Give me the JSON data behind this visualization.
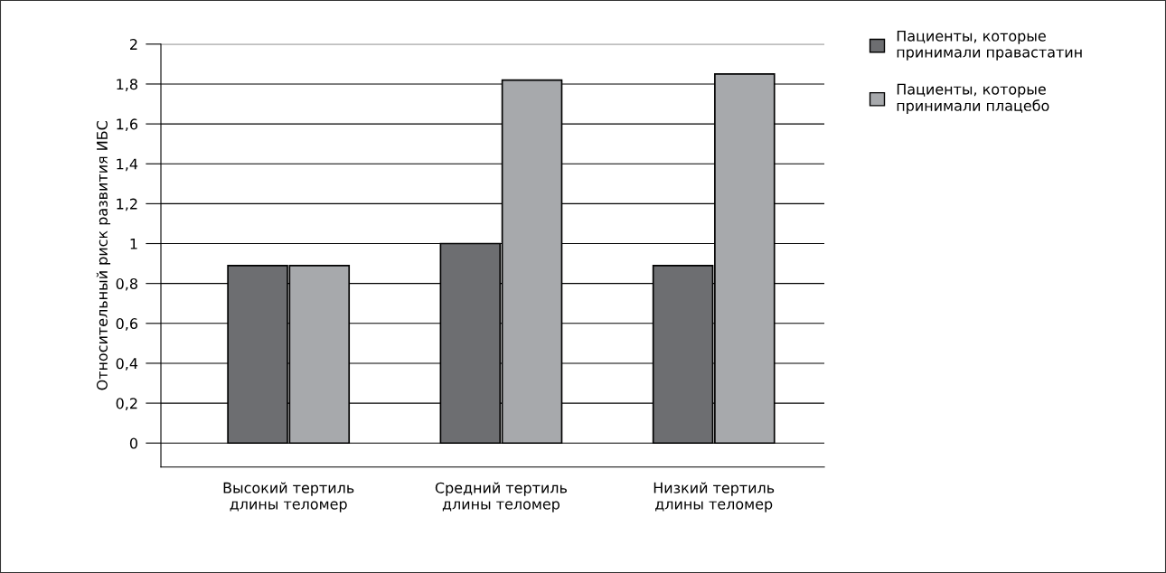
{
  "chart_data": {
    "type": "bar",
    "ylabel": "Относительный риск развития ИБС",
    "categories": [
      "Высокий тертиль\nдлины теломер",
      "Средний тертиль\nдлины теломер",
      "Низкий тертиль\nдлины теломер"
    ],
    "series": [
      {
        "name": "Пациенты, которые\nпринимали правастатин",
        "color": "#6d6e71",
        "values": [
          0.89,
          1.0,
          0.89
        ]
      },
      {
        "name": "Пациенты, которые\nпринимали плацебо",
        "color": "#a7a9ac",
        "values": [
          0.89,
          1.82,
          1.85
        ]
      }
    ],
    "ylim": [
      -0.12,
      2
    ],
    "yticks": [
      0,
      {
        "value": 0.2,
        "label": "0,2"
      },
      {
        "value": 0.4,
        "label": "0,4"
      },
      {
        "value": 0.6,
        "label": "0,6"
      },
      {
        "value": 0.8,
        "label": "0,8"
      },
      1,
      {
        "value": 1.2,
        "label": "1,2"
      },
      {
        "value": 1.4,
        "label": "1,4"
      },
      {
        "value": 1.6,
        "label": "1,6"
      },
      {
        "value": 1.8,
        "label": "1,8"
      },
      2
    ],
    "grid": "y",
    "legend": "top right"
  }
}
